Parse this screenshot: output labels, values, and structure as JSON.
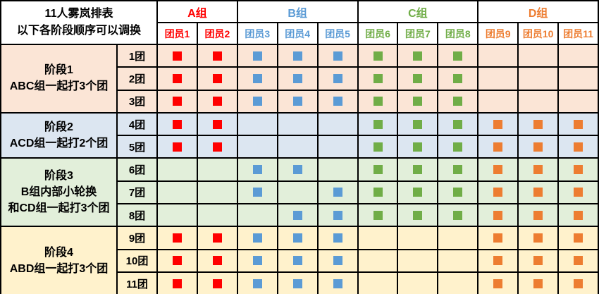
{
  "chart_data": {
    "type": "table",
    "title": "11人雾岚排表",
    "subtitle": "以下各阶段顺序可以调换",
    "groups": [
      {
        "name": "A组",
        "color": "#FF0000",
        "members": [
          "团员1",
          "团员2"
        ]
      },
      {
        "name": "B组",
        "color": "#5B9BD5",
        "members": [
          "团员3",
          "团员4",
          "团员5"
        ]
      },
      {
        "name": "C组",
        "color": "#70AD47",
        "members": [
          "团员6",
          "团员7",
          "团员8"
        ]
      },
      {
        "name": "D组",
        "color": "#ED7D31",
        "members": [
          "团员9",
          "团员10",
          "团员11"
        ]
      }
    ],
    "stages": [
      {
        "label_lines": [
          "阶段1",
          "ABC组一起打3个团"
        ],
        "bg": "#FBE5D6",
        "rows": [
          {
            "round": "1团",
            "marks": [
              1,
              1,
              1,
              1,
              1,
              1,
              1,
              1,
              0,
              0,
              0
            ]
          },
          {
            "round": "2团",
            "marks": [
              1,
              1,
              1,
              1,
              1,
              1,
              1,
              1,
              0,
              0,
              0
            ]
          },
          {
            "round": "3团",
            "marks": [
              1,
              1,
              1,
              1,
              1,
              1,
              1,
              1,
              0,
              0,
              0
            ]
          }
        ]
      },
      {
        "label_lines": [
          "阶段2",
          "ACD组一起打2个团"
        ],
        "bg": "#DCE6F1",
        "rows": [
          {
            "round": "4团",
            "marks": [
              1,
              1,
              0,
              0,
              0,
              1,
              1,
              1,
              1,
              1,
              1
            ]
          },
          {
            "round": "5团",
            "marks": [
              1,
              1,
              0,
              0,
              0,
              1,
              1,
              1,
              1,
              1,
              1
            ]
          }
        ]
      },
      {
        "label_lines": [
          "阶段3",
          "B组内部小轮换",
          "和CD组一起打3个团"
        ],
        "bg": "#E2EFDA",
        "rows": [
          {
            "round": "6团",
            "marks": [
              0,
              0,
              1,
              1,
              0,
              1,
              1,
              1,
              1,
              1,
              1
            ]
          },
          {
            "round": "7团",
            "marks": [
              0,
              0,
              1,
              0,
              1,
              1,
              1,
              1,
              1,
              1,
              1
            ]
          },
          {
            "round": "8团",
            "marks": [
              0,
              0,
              0,
              1,
              1,
              1,
              1,
              1,
              1,
              1,
              1
            ]
          }
        ]
      },
      {
        "label_lines": [
          "阶段4",
          "ABD组一起打3个团"
        ],
        "bg": "#FFF2CC",
        "rows": [
          {
            "round": "9团",
            "marks": [
              1,
              1,
              1,
              1,
              1,
              0,
              0,
              0,
              1,
              1,
              1
            ]
          },
          {
            "round": "10团",
            "marks": [
              1,
              1,
              1,
              1,
              1,
              0,
              0,
              0,
              1,
              1,
              1
            ]
          },
          {
            "round": "11团",
            "marks": [
              1,
              1,
              1,
              1,
              1,
              0,
              0,
              0,
              1,
              1,
              1
            ]
          }
        ]
      }
    ]
  }
}
